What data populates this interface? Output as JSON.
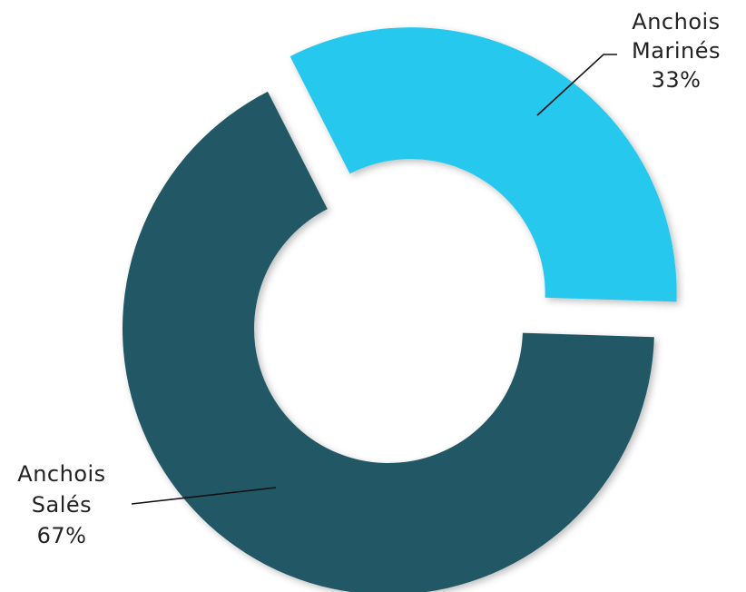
{
  "chart_data": {
    "type": "pie",
    "variant": "donut",
    "exploded": true,
    "legend": "none",
    "slices": [
      {
        "name_lines": [
          "Anchois",
          "Marinés"
        ],
        "value": 33,
        "value_label": "33%",
        "color": "#26C8EE"
      },
      {
        "name_lines": [
          "Anchois",
          "Salés"
        ],
        "value": 67,
        "value_label": "67%",
        "color": "#225966"
      }
    ]
  }
}
